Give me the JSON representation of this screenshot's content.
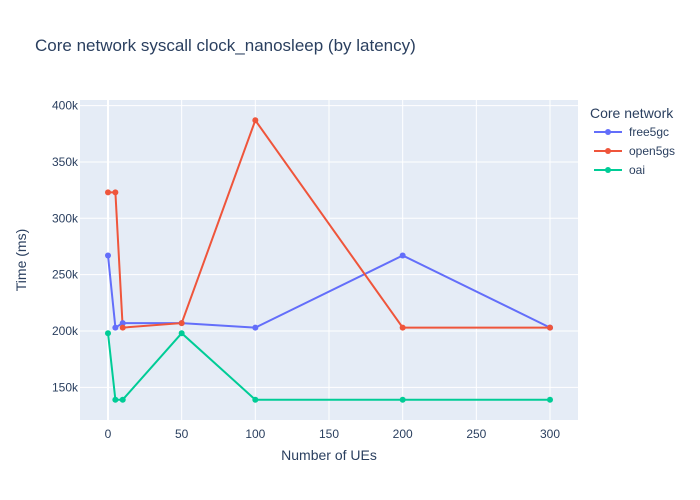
{
  "chart_data": {
    "type": "line",
    "title": "Core network syscall clock_nanosleep (by latency)",
    "xlabel": "Number of UEs",
    "ylabel": "Time (ms)",
    "x_ticks": [
      0,
      50,
      100,
      150,
      200,
      250,
      300
    ],
    "y_ticks": [
      150000,
      200000,
      250000,
      300000,
      350000,
      400000
    ],
    "y_tick_labels": [
      "150k",
      "200k",
      "250k",
      "300k",
      "350k",
      "400k"
    ],
    "xlim": [
      -19,
      319
    ],
    "ylim": [
      121000,
      405000
    ],
    "grid": true,
    "legend_title": "Core network",
    "legend_position": "right",
    "series": [
      {
        "name": "free5gc",
        "color": "#636efa",
        "x": [
          0,
          5,
          10,
          50,
          100,
          200,
          300
        ],
        "y": [
          267000,
          203000,
          207000,
          207000,
          203000,
          267000,
          203000
        ]
      },
      {
        "name": "open5gs",
        "color": "#ef553b",
        "x": [
          0,
          5,
          10,
          50,
          100,
          200,
          300
        ],
        "y": [
          323000,
          323000,
          203000,
          207000,
          387000,
          203000,
          203000
        ]
      },
      {
        "name": "oai",
        "color": "#00cc96",
        "x": [
          0,
          5,
          10,
          50,
          100,
          200,
          300
        ],
        "y": [
          198000,
          139000,
          139000,
          198000,
          139000,
          139000,
          139000
        ]
      }
    ]
  }
}
